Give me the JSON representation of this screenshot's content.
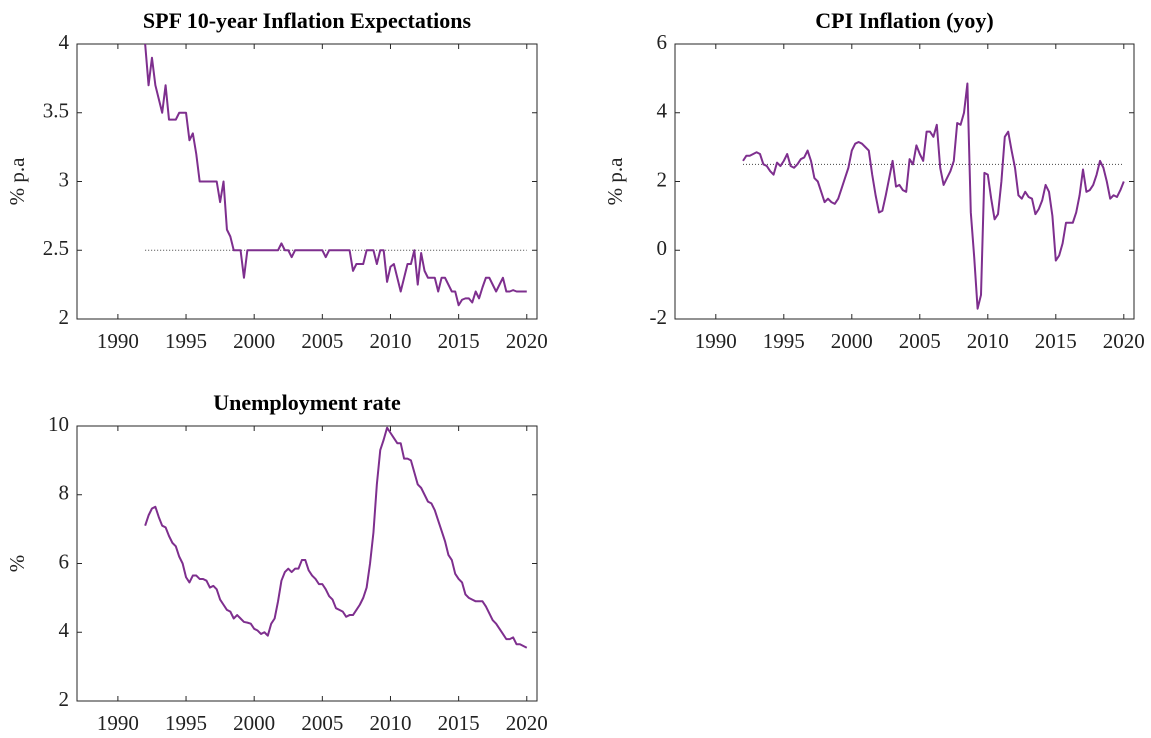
{
  "chart_data": [
    {
      "type": "line",
      "title": "SPF 10-year Inflation Expectations",
      "ylabel": "% p.a",
      "color": "#7e2f8e",
      "x": [
        1992,
        1992.25,
        1992.5,
        1992.75,
        1993,
        1993.25,
        1993.5,
        1993.75,
        1994,
        1994.25,
        1994.5,
        1994.75,
        1995,
        1995.25,
        1995.5,
        1995.75,
        1996,
        1996.25,
        1996.5,
        1996.75,
        1997,
        1997.25,
        1997.5,
        1997.75,
        1998,
        1998.25,
        1998.5,
        1998.75,
        1999,
        1999.25,
        1999.5,
        1999.75,
        2000,
        2000.25,
        2000.5,
        2000.75,
        2001,
        2001.25,
        2001.5,
        2001.75,
        2002,
        2002.25,
        2002.5,
        2002.75,
        2003,
        2003.25,
        2003.5,
        2003.75,
        2004,
        2004.25,
        2004.5,
        2004.75,
        2005,
        2005.25,
        2005.5,
        2005.75,
        2006,
        2006.25,
        2006.5,
        2006.75,
        2007,
        2007.25,
        2007.5,
        2007.75,
        2008,
        2008.25,
        2008.5,
        2008.75,
        2009,
        2009.25,
        2009.5,
        2009.75,
        2010,
        2010.25,
        2010.5,
        2010.75,
        2011,
        2011.25,
        2011.5,
        2011.75,
        2012,
        2012.25,
        2012.5,
        2012.75,
        2013,
        2013.25,
        2013.5,
        2013.75,
        2014,
        2014.25,
        2014.5,
        2014.75,
        2015,
        2015.25,
        2015.5,
        2015.75,
        2016,
        2016.25,
        2016.5,
        2016.75,
        2017,
        2017.25,
        2017.5,
        2017.75,
        2018,
        2018.25,
        2018.5,
        2018.75,
        2019,
        2019.25,
        2019.5,
        2019.75,
        2020
      ],
      "values": [
        4.0,
        3.7,
        3.9,
        3.7,
        3.6,
        3.5,
        3.7,
        3.45,
        3.45,
        3.45,
        3.5,
        3.5,
        3.5,
        3.3,
        3.35,
        3.2,
        3.0,
        3.0,
        3.0,
        3.0,
        3.0,
        3.0,
        2.85,
        3.0,
        2.65,
        2.6,
        2.5,
        2.5,
        2.5,
        2.3,
        2.5,
        2.5,
        2.5,
        2.5,
        2.5,
        2.5,
        2.5,
        2.5,
        2.5,
        2.5,
        2.55,
        2.5,
        2.5,
        2.45,
        2.5,
        2.5,
        2.5,
        2.5,
        2.5,
        2.5,
        2.5,
        2.5,
        2.5,
        2.45,
        2.5,
        2.5,
        2.5,
        2.5,
        2.5,
        2.5,
        2.5,
        2.35,
        2.4,
        2.4,
        2.4,
        2.5,
        2.5,
        2.5,
        2.4,
        2.5,
        2.5,
        2.27,
        2.38,
        2.4,
        2.3,
        2.2,
        2.3,
        2.4,
        2.4,
        2.5,
        2.25,
        2.48,
        2.35,
        2.3,
        2.3,
        2.3,
        2.2,
        2.3,
        2.3,
        2.25,
        2.2,
        2.2,
        2.1,
        2.14,
        2.15,
        2.15,
        2.12,
        2.2,
        2.15,
        2.23,
        2.3,
        2.3,
        2.25,
        2.2,
        2.25,
        2.3,
        2.2,
        2.2,
        2.21,
        2.2,
        2.2,
        2.2,
        2.2
      ],
      "reference_line": 2.5,
      "xlim": [
        1987,
        2020.75
      ],
      "ylim": [
        2,
        4
      ],
      "xticks": [
        1990,
        1995,
        2000,
        2005,
        2010,
        2015,
        2020
      ],
      "yticks": [
        2,
        2.5,
        3,
        3.5,
        4
      ]
    },
    {
      "type": "line",
      "title": "CPI Inflation (yoy)",
      "ylabel": "% p.a",
      "color": "#7e2f8e",
      "x": [
        1992,
        1992.25,
        1992.5,
        1992.75,
        1993,
        1993.25,
        1993.5,
        1993.75,
        1994,
        1994.25,
        1994.5,
        1994.75,
        1995,
        1995.25,
        1995.5,
        1995.75,
        1996,
        1996.25,
        1996.5,
        1996.75,
        1997,
        1997.25,
        1997.5,
        1997.75,
        1998,
        1998.25,
        1998.5,
        1998.75,
        1999,
        1999.25,
        1999.5,
        1999.75,
        2000,
        2000.25,
        2000.5,
        2000.75,
        2001,
        2001.25,
        2001.5,
        2001.75,
        2002,
        2002.25,
        2002.5,
        2002.75,
        2003,
        2003.25,
        2003.5,
        2003.75,
        2004,
        2004.25,
        2004.5,
        2004.75,
        2005,
        2005.25,
        2005.5,
        2005.75,
        2006,
        2006.25,
        2006.5,
        2006.75,
        2007,
        2007.25,
        2007.5,
        2007.75,
        2008,
        2008.25,
        2008.5,
        2008.75,
        2009,
        2009.25,
        2009.5,
        2009.75,
        2010,
        2010.25,
        2010.5,
        2010.75,
        2011,
        2011.25,
        2011.5,
        2011.75,
        2012,
        2012.25,
        2012.5,
        2012.75,
        2013,
        2013.25,
        2013.5,
        2013.75,
        2014,
        2014.25,
        2014.5,
        2014.75,
        2015,
        2015.25,
        2015.5,
        2015.75,
        2016,
        2016.25,
        2016.5,
        2016.75,
        2017,
        2017.25,
        2017.5,
        2017.75,
        2018,
        2018.25,
        2018.5,
        2018.75,
        2019,
        2019.25,
        2019.5,
        2019.75,
        2020
      ],
      "values": [
        2.6,
        2.75,
        2.75,
        2.8,
        2.85,
        2.8,
        2.5,
        2.45,
        2.3,
        2.2,
        2.55,
        2.45,
        2.6,
        2.8,
        2.45,
        2.4,
        2.5,
        2.65,
        2.7,
        2.9,
        2.6,
        2.1,
        2.0,
        1.7,
        1.4,
        1.5,
        1.4,
        1.35,
        1.5,
        1.8,
        2.1,
        2.4,
        2.9,
        3.1,
        3.15,
        3.1,
        3.0,
        2.9,
        2.2,
        1.6,
        1.1,
        1.15,
        1.6,
        2.1,
        2.6,
        1.85,
        1.9,
        1.75,
        1.7,
        2.65,
        2.5,
        3.05,
        2.8,
        2.6,
        3.45,
        3.45,
        3.3,
        3.65,
        2.4,
        1.9,
        2.1,
        2.3,
        2.6,
        3.7,
        3.65,
        4.0,
        4.85,
        1.1,
        -0.2,
        -1.7,
        -1.3,
        2.25,
        2.2,
        1.5,
        0.9,
        1.05,
        2.0,
        3.3,
        3.45,
        2.9,
        2.4,
        1.6,
        1.5,
        1.7,
        1.55,
        1.5,
        1.05,
        1.2,
        1.45,
        1.9,
        1.7,
        1.0,
        -0.3,
        -0.15,
        0.2,
        0.8,
        0.8,
        0.8,
        1.1,
        1.6,
        2.35,
        1.7,
        1.75,
        1.9,
        2.2,
        2.6,
        2.4,
        2.0,
        1.5,
        1.6,
        1.55,
        1.75,
        2.0
      ],
      "reference_line": 2.5,
      "xlim": [
        1987,
        2020.75
      ],
      "ylim": [
        -2,
        6
      ],
      "xticks": [
        1990,
        1995,
        2000,
        2005,
        2010,
        2015,
        2020
      ],
      "yticks": [
        -2,
        0,
        2,
        4,
        6
      ]
    },
    {
      "type": "line",
      "title": "Unemployment rate",
      "ylabel": "%",
      "color": "#7e2f8e",
      "x": [
        1992,
        1992.25,
        1992.5,
        1992.75,
        1993,
        1993.25,
        1993.5,
        1993.75,
        1994,
        1994.25,
        1994.5,
        1994.75,
        1995,
        1995.25,
        1995.5,
        1995.75,
        1996,
        1996.25,
        1996.5,
        1996.75,
        1997,
        1997.25,
        1997.5,
        1997.75,
        1998,
        1998.25,
        1998.5,
        1998.75,
        1999,
        1999.25,
        1999.5,
        1999.75,
        2000,
        2000.25,
        2000.5,
        2000.75,
        2001,
        2001.25,
        2001.5,
        2001.75,
        2002,
        2002.25,
        2002.5,
        2002.75,
        2003,
        2003.25,
        2003.5,
        2003.75,
        2004,
        2004.25,
        2004.5,
        2004.75,
        2005,
        2005.25,
        2005.5,
        2005.75,
        2006,
        2006.25,
        2006.5,
        2006.75,
        2007,
        2007.25,
        2007.5,
        2007.75,
        2008,
        2008.25,
        2008.5,
        2008.75,
        2009,
        2009.25,
        2009.5,
        2009.75,
        2010,
        2010.25,
        2010.5,
        2010.75,
        2011,
        2011.25,
        2011.5,
        2011.75,
        2012,
        2012.25,
        2012.5,
        2012.75,
        2013,
        2013.25,
        2013.5,
        2013.75,
        2014,
        2014.25,
        2014.5,
        2014.75,
        2015,
        2015.25,
        2015.5,
        2015.75,
        2016,
        2016.25,
        2016.5,
        2016.75,
        2017,
        2017.25,
        2017.5,
        2017.75,
        2018,
        2018.25,
        2018.5,
        2018.75,
        2019,
        2019.25,
        2019.5,
        2019.75,
        2020
      ],
      "values": [
        7.1,
        7.4,
        7.6,
        7.65,
        7.35,
        7.1,
        7.05,
        6.8,
        6.6,
        6.5,
        6.2,
        6.0,
        5.6,
        5.45,
        5.65,
        5.65,
        5.55,
        5.55,
        5.5,
        5.3,
        5.35,
        5.25,
        4.95,
        4.8,
        4.65,
        4.6,
        4.4,
        4.5,
        4.4,
        4.3,
        4.28,
        4.25,
        4.1,
        4.05,
        3.95,
        4.0,
        3.9,
        4.25,
        4.4,
        4.9,
        5.5,
        5.75,
        5.85,
        5.75,
        5.85,
        5.85,
        6.1,
        6.1,
        5.8,
        5.65,
        5.55,
        5.4,
        5.4,
        5.25,
        5.05,
        4.95,
        4.7,
        4.65,
        4.6,
        4.45,
        4.5,
        4.5,
        4.65,
        4.8,
        5.0,
        5.3,
        6.0,
        6.9,
        8.3,
        9.3,
        9.6,
        9.95,
        9.8,
        9.65,
        9.5,
        9.5,
        9.05,
        9.05,
        9.0,
        8.65,
        8.3,
        8.2,
        8.0,
        7.8,
        7.75,
        7.55,
        7.25,
        6.95,
        6.65,
        6.25,
        6.1,
        5.7,
        5.55,
        5.45,
        5.1,
        5.0,
        4.95,
        4.9,
        4.9,
        4.9,
        4.75,
        4.55,
        4.35,
        4.25,
        4.1,
        3.95,
        3.8,
        3.8,
        3.85,
        3.65,
        3.65,
        3.6,
        3.55
      ],
      "xlim": [
        1987,
        2020.75
      ],
      "ylim": [
        2,
        10
      ],
      "xticks": [
        1990,
        1995,
        2000,
        2005,
        2010,
        2015,
        2020
      ],
      "yticks": [
        2,
        4,
        6,
        8,
        10
      ]
    }
  ]
}
